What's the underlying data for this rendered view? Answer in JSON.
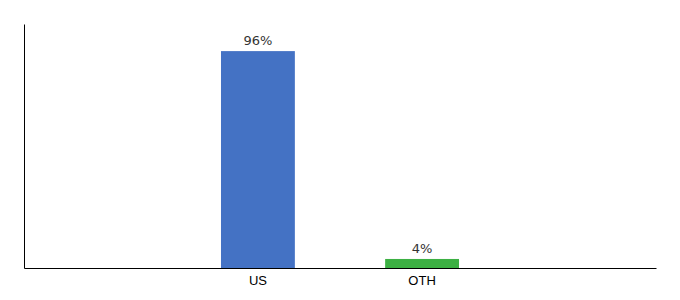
{
  "chart_data": {
    "type": "bar",
    "categories": [
      "US",
      "OTH"
    ],
    "values": [
      96,
      4
    ],
    "value_labels": [
      "96%",
      "4%"
    ],
    "colors": [
      "#4472C4",
      "#3CB043"
    ],
    "ylim": [
      0,
      108
    ],
    "data_labels": true,
    "tick_labels": "x"
  }
}
